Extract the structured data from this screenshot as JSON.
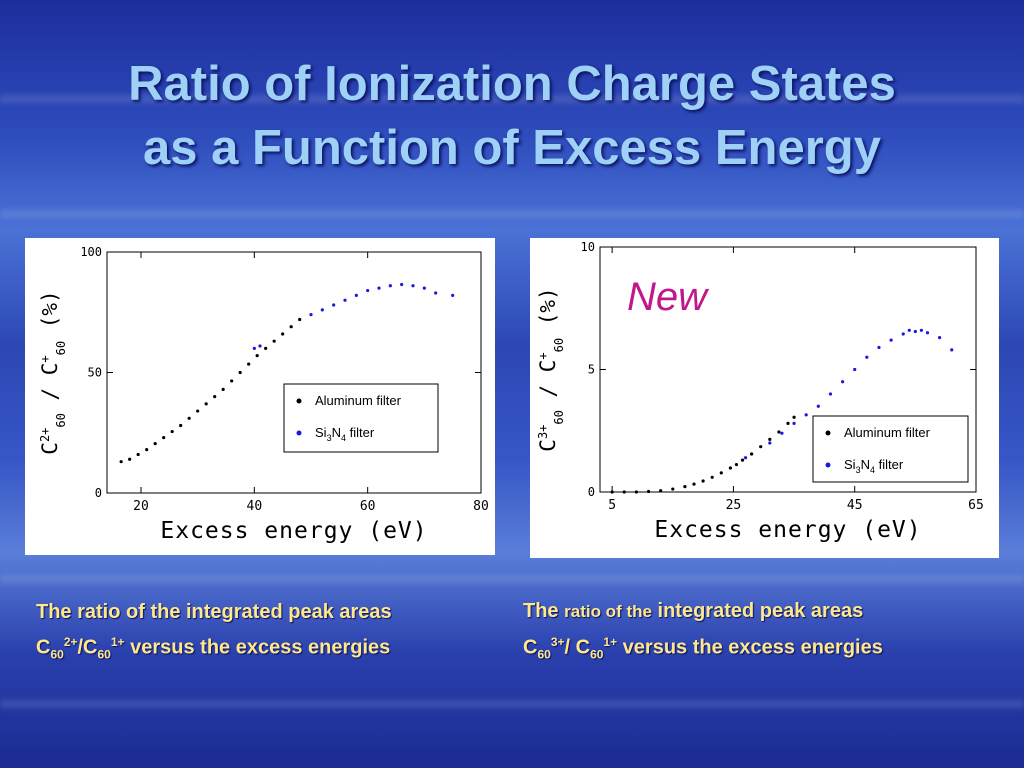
{
  "slide": {
    "title_line1": "Ratio of Ionization Charge States",
    "title_line2": "as a Function of Excess Energy"
  },
  "colors": {
    "title": "#9fd0f5",
    "caption": "#ffe88a",
    "aluminum": "#000000",
    "si3n4": "#1a1adb",
    "new_label": "#c0188a"
  },
  "captions": {
    "left": {
      "line1": "The ratio of the integrated peak areas",
      "c": "C",
      "sub1": "60",
      "sup1": "2+",
      "slash": "/C",
      "sub2": "60",
      "sup2": "1+",
      "rest": " versus the excess energies"
    },
    "right": {
      "the": "The",
      "ratio_of_the": "ratio of the",
      "integrated": "integrated peak areas",
      "c": "C",
      "sub1": "60",
      "sup1": "3+",
      "slash": "/ C",
      "sub2": "60",
      "sup2": "1+",
      "rest": " versus the excess energies"
    }
  },
  "chart_data": [
    {
      "type": "scatter",
      "xlabel": "Excess energy (eV)",
      "ylabel_main": "C",
      "ylabel_sup1": "2+",
      "ylabel_sub1": "60",
      "ylabel_mid": "/ C",
      "ylabel_sup2": "+",
      "ylabel_sub2": "60",
      "ylabel_unit": "(%)",
      "xlim": [
        14,
        80
      ],
      "ylim": [
        0,
        100
      ],
      "xticks": [
        "20",
        "40",
        "60",
        "80"
      ],
      "xtick_values": [
        20,
        40,
        60,
        80
      ],
      "yticks": [
        "0",
        "50",
        "100"
      ],
      "ytick_values": [
        0,
        50,
        100
      ],
      "legend": {
        "placement": "center-right",
        "entries": [
          "Aluminum filter",
          "Si3N4 filter"
        ]
      },
      "series": [
        {
          "name": "Aluminum filter",
          "color": "#000000",
          "x": [
            16.5,
            18,
            19.5,
            21,
            22.5,
            24,
            25.5,
            27,
            28.5,
            30,
            31.5,
            33,
            34.5,
            36,
            37.5,
            39,
            40.5,
            42,
            43.5,
            45,
            46.5,
            48
          ],
          "y": [
            13,
            14,
            16,
            18,
            20.5,
            23,
            25.5,
            28,
            31,
            34,
            37,
            40,
            43,
            46.5,
            50,
            53.5,
            57,
            60,
            63,
            66,
            69,
            72
          ]
        },
        {
          "name": "Si3N4 filter",
          "color": "#1a1adb",
          "x": [
            40,
            41,
            50,
            52,
            54,
            56,
            58,
            60,
            62,
            64,
            66,
            68,
            70,
            72,
            75
          ],
          "y": [
            60,
            61,
            74,
            76,
            78,
            80,
            82,
            84,
            85,
            86,
            86.5,
            86,
            85,
            83,
            82
          ]
        }
      ]
    },
    {
      "type": "scatter",
      "xlabel": "Excess energy (eV)",
      "ylabel_main": "C",
      "ylabel_sup1": "3+",
      "ylabel_sub1": "60",
      "ylabel_mid": "/ C",
      "ylabel_sup2": "+",
      "ylabel_sub2": "60",
      "ylabel_unit": "(%)",
      "xlim": [
        3,
        65
      ],
      "ylim": [
        0,
        10
      ],
      "xticks": [
        "5",
        "25",
        "45",
        "65"
      ],
      "xtick_values": [
        5,
        25,
        45,
        65
      ],
      "yticks": [
        "0",
        "5",
        "10"
      ],
      "ytick_values": [
        0,
        5,
        10
      ],
      "annotation": "New",
      "legend": {
        "placement": "bottom-right",
        "entries": [
          "Aluminum filter",
          "Si3N4 filter"
        ]
      },
      "series": [
        {
          "name": "Aluminum filter",
          "color": "#000000",
          "x": [
            5,
            7,
            9,
            11,
            13,
            15,
            17,
            18.5,
            20,
            21.5,
            23,
            24.5,
            25.5,
            26.5,
            28,
            29.5,
            31,
            32.5,
            34,
            35
          ],
          "y": [
            0,
            0,
            0,
            0.02,
            0.05,
            0.12,
            0.22,
            0.32,
            0.45,
            0.6,
            0.78,
            0.98,
            1.12,
            1.3,
            1.55,
            1.85,
            2.15,
            2.45,
            2.8,
            3.05
          ]
        },
        {
          "name": "Si3N4 filter",
          "color": "#1a1adb",
          "x": [
            27,
            31,
            33,
            35,
            37,
            39,
            41,
            43,
            45,
            47,
            49,
            51,
            53,
            54,
            55,
            56,
            57,
            59,
            61
          ],
          "y": [
            1.4,
            2.0,
            2.4,
            2.8,
            3.15,
            3.5,
            4.0,
            4.5,
            5.0,
            5.5,
            5.9,
            6.2,
            6.45,
            6.6,
            6.55,
            6.6,
            6.5,
            6.3,
            5.8
          ]
        }
      ]
    }
  ]
}
